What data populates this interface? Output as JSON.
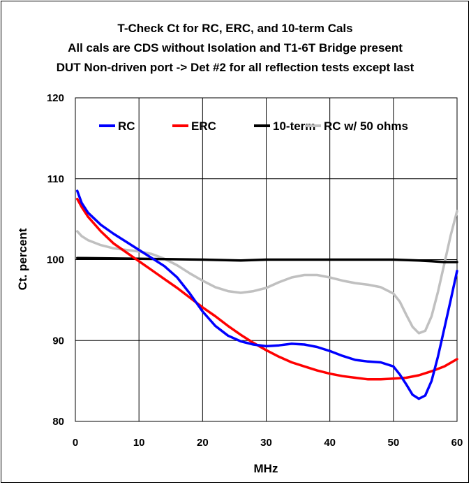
{
  "chart_data": {
    "type": "line",
    "title": [
      "T-Check Ct  for RC, ERC, and 10-term Cals",
      "All cals are CDS without Isolation and T1-6T Bridge present",
      "DUT Non-driven port -> Det #2 for all reflection tests except last"
    ],
    "xlabel": "MHz",
    "ylabel": "Ct. percent",
    "xlim": [
      0,
      60
    ],
    "ylim": [
      80,
      120
    ],
    "xticks": [
      0,
      10,
      20,
      30,
      40,
      50,
      60
    ],
    "yticks": [
      80,
      90,
      100,
      110,
      120
    ],
    "grid": true,
    "legend_position": "top",
    "series": [
      {
        "name": "RC",
        "color": "#0000ff",
        "points": [
          [
            0.3,
            108.5
          ],
          [
            1,
            107
          ],
          [
            2,
            105.8
          ],
          [
            4,
            104.3
          ],
          [
            6,
            103.2
          ],
          [
            8,
            102.2
          ],
          [
            10,
            101.2
          ],
          [
            12,
            100.2
          ],
          [
            14,
            99.2
          ],
          [
            16,
            97.8
          ],
          [
            18,
            95.8
          ],
          [
            20,
            93.6
          ],
          [
            22,
            91.8
          ],
          [
            24,
            90.6
          ],
          [
            26,
            89.9
          ],
          [
            28,
            89.5
          ],
          [
            30,
            89.3
          ],
          [
            32,
            89.4
          ],
          [
            34,
            89.6
          ],
          [
            36,
            89.5
          ],
          [
            38,
            89.2
          ],
          [
            40,
            88.7
          ],
          [
            42,
            88.1
          ],
          [
            44,
            87.6
          ],
          [
            46,
            87.4
          ],
          [
            48,
            87.3
          ],
          [
            50,
            86.8
          ],
          [
            51,
            85.8
          ],
          [
            52,
            84.6
          ],
          [
            53,
            83.3
          ],
          [
            54,
            82.8
          ],
          [
            55,
            83.2
          ],
          [
            56,
            85
          ],
          [
            57,
            88
          ],
          [
            58,
            91.5
          ],
          [
            59,
            95
          ],
          [
            60,
            98.6
          ]
        ]
      },
      {
        "name": "ERC",
        "color": "#ff0000",
        "points": [
          [
            0.3,
            107.5
          ],
          [
            1,
            106.5
          ],
          [
            2,
            105.3
          ],
          [
            4,
            103.5
          ],
          [
            6,
            102
          ],
          [
            8,
            100.9
          ],
          [
            10,
            99.8
          ],
          [
            12,
            98.7
          ],
          [
            14,
            97.6
          ],
          [
            16,
            96.5
          ],
          [
            18,
            95.3
          ],
          [
            20,
            94.1
          ],
          [
            22,
            93
          ],
          [
            24,
            91.8
          ],
          [
            26,
            90.7
          ],
          [
            28,
            89.7
          ],
          [
            30,
            88.8
          ],
          [
            32,
            88
          ],
          [
            34,
            87.3
          ],
          [
            36,
            86.8
          ],
          [
            38,
            86.3
          ],
          [
            40,
            85.9
          ],
          [
            42,
            85.6
          ],
          [
            44,
            85.4
          ],
          [
            46,
            85.2
          ],
          [
            48,
            85.2
          ],
          [
            50,
            85.3
          ],
          [
            52,
            85.4
          ],
          [
            54,
            85.7
          ],
          [
            56,
            86.2
          ],
          [
            58,
            86.8
          ],
          [
            60,
            87.7
          ]
        ]
      },
      {
        "name": "10-term",
        "color": "#000000",
        "points": [
          [
            0.3,
            100.2
          ],
          [
            10,
            100.1
          ],
          [
            20,
            100.0
          ],
          [
            26,
            99.9
          ],
          [
            30,
            100.0
          ],
          [
            40,
            100.0
          ],
          [
            50,
            100.0
          ],
          [
            54,
            99.9
          ],
          [
            56,
            99.8
          ],
          [
            58,
            99.7
          ],
          [
            60,
            99.7
          ]
        ]
      },
      {
        "name": "RC w/ 50 ohms",
        "color": "#c0c0c0",
        "points": [
          [
            0.3,
            103.5
          ],
          [
            1,
            102.9
          ],
          [
            2,
            102.4
          ],
          [
            4,
            101.8
          ],
          [
            6,
            101.4
          ],
          [
            8,
            101.2
          ],
          [
            10,
            101.0
          ],
          [
            12,
            100.7
          ],
          [
            14,
            100.1
          ],
          [
            16,
            99.3
          ],
          [
            18,
            98.3
          ],
          [
            20,
            97.4
          ],
          [
            22,
            96.6
          ],
          [
            24,
            96.1
          ],
          [
            26,
            95.9
          ],
          [
            28,
            96.1
          ],
          [
            30,
            96.5
          ],
          [
            32,
            97.2
          ],
          [
            34,
            97.8
          ],
          [
            36,
            98.1
          ],
          [
            38,
            98.1
          ],
          [
            40,
            97.8
          ],
          [
            42,
            97.4
          ],
          [
            44,
            97.1
          ],
          [
            46,
            96.9
          ],
          [
            48,
            96.6
          ],
          [
            50,
            95.8
          ],
          [
            51,
            94.8
          ],
          [
            52,
            93.2
          ],
          [
            53,
            91.7
          ],
          [
            54,
            90.9
          ],
          [
            55,
            91.2
          ],
          [
            56,
            93
          ],
          [
            57,
            96
          ],
          [
            58,
            99.5
          ],
          [
            59,
            103
          ],
          [
            60,
            106
          ]
        ]
      }
    ]
  }
}
